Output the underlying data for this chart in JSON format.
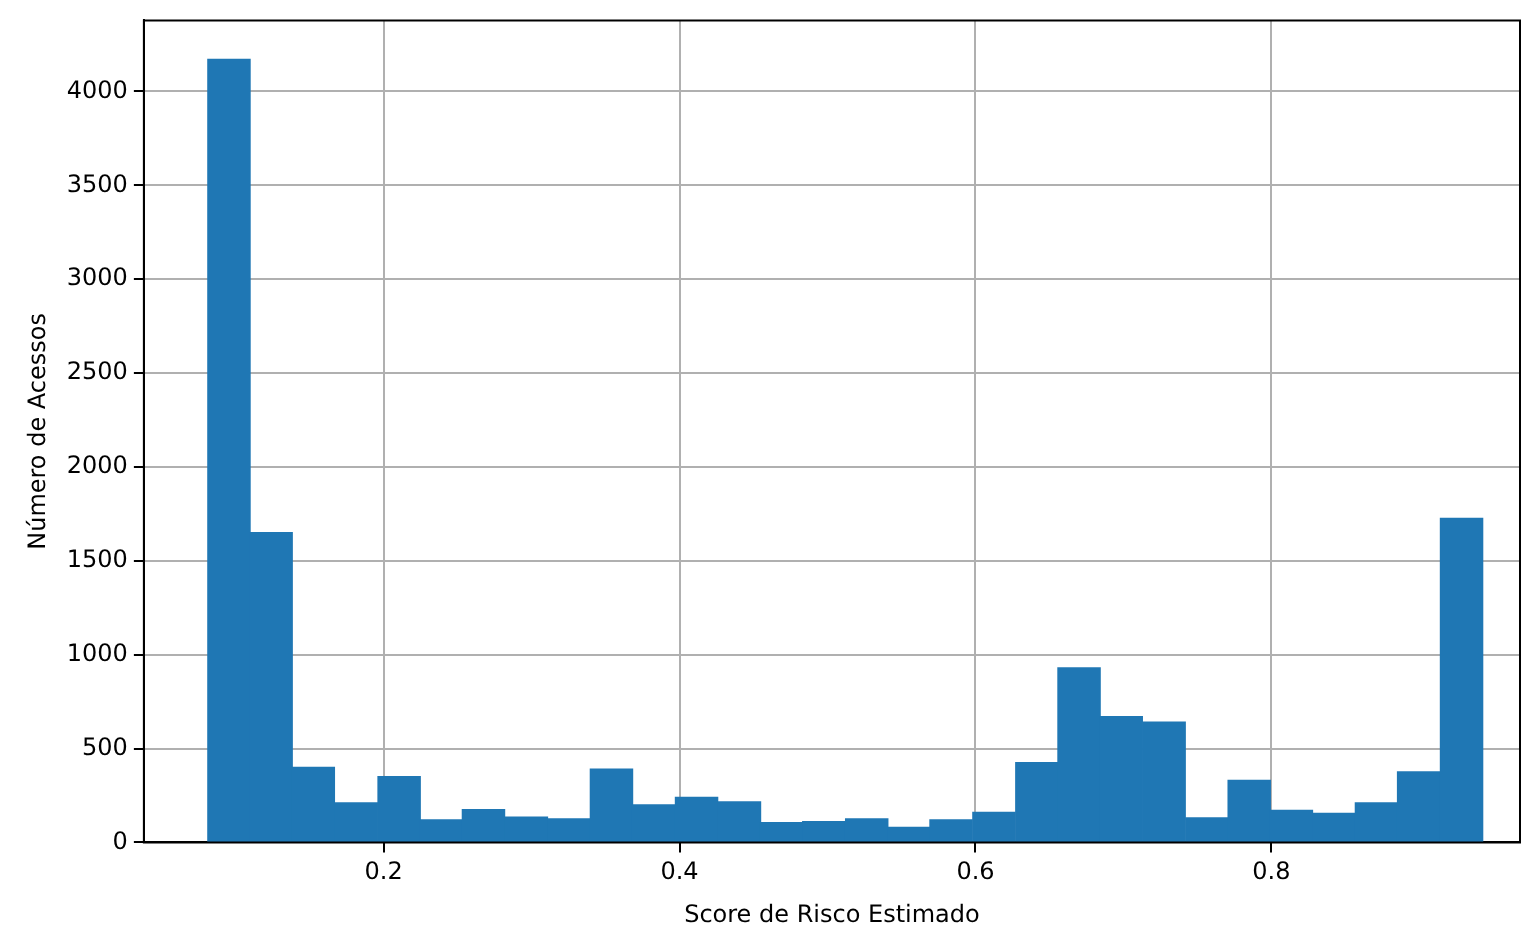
{
  "chart_data": {
    "type": "histogram",
    "xlabel": "Score de Risco Estimado",
    "ylabel": "Número de Acessos",
    "bins": [
      0.081,
      0.11,
      0.138,
      0.167,
      0.196,
      0.225,
      0.253,
      0.282,
      0.311,
      0.34,
      0.368,
      0.397,
      0.426,
      0.455,
      0.483,
      0.512,
      0.541,
      0.569,
      0.598,
      0.627,
      0.656,
      0.684,
      0.713,
      0.742,
      0.771,
      0.799,
      0.828,
      0.857,
      0.885,
      0.914,
      0.943
    ],
    "values": [
      4170,
      1650,
      400,
      210,
      350,
      120,
      175,
      135,
      125,
      390,
      200,
      240,
      215,
      105,
      110,
      125,
      80,
      120,
      160,
      425,
      930,
      670,
      640,
      130,
      330,
      170,
      155,
      210,
      375,
      1725
    ],
    "color": "#1f77b4",
    "xlim": [
      0.038,
      0.968
    ],
    "xticks": [
      0.2,
      0.4,
      0.6,
      0.8
    ],
    "ylim": [
      0,
      4378
    ],
    "yticks": [
      0,
      500,
      1000,
      1500,
      2000,
      2500,
      3000,
      3500,
      4000
    ],
    "grid": true
  }
}
